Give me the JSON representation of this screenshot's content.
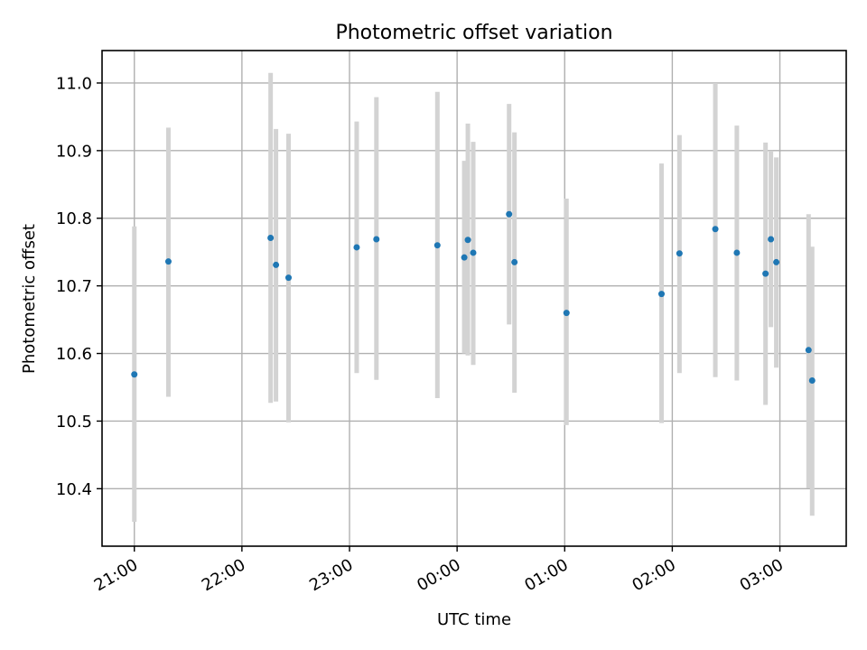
{
  "chart_data": {
    "type": "scatter",
    "title": "Photometric offset variation",
    "xlabel": "UTC time",
    "ylabel": "Photometric offset",
    "x_axis": {
      "kind": "time",
      "range": [
        "20:42",
        "03:37"
      ],
      "ticks": [
        "21:00",
        "22:00",
        "23:00",
        "00:00",
        "01:00",
        "02:00",
        "03:00"
      ]
    },
    "ylim": [
      10.315,
      11.048
    ],
    "y_ticks": [
      "10.4",
      "10.5",
      "10.6",
      "10.7",
      "10.8",
      "10.9",
      "11.0"
    ],
    "grid": true,
    "point_color": "#1f77b4",
    "errorbar_color": "#d3d3d3",
    "series": [
      {
        "points": [
          {
            "x": "21:00",
            "y": 10.569,
            "ylow": 10.351,
            "yhigh": 10.788
          },
          {
            "x": "21:19",
            "y": 10.736,
            "ylow": 10.536,
            "yhigh": 10.934
          },
          {
            "x": "22:16",
            "y": 10.771,
            "ylow": 10.527,
            "yhigh": 11.015
          },
          {
            "x": "22:19",
            "y": 10.731,
            "ylow": 10.529,
            "yhigh": 10.932
          },
          {
            "x": "22:26",
            "y": 10.712,
            "ylow": 10.498,
            "yhigh": 10.925
          },
          {
            "x": "23:04",
            "y": 10.757,
            "ylow": 10.571,
            "yhigh": 10.943
          },
          {
            "x": "23:15",
            "y": 10.769,
            "ylow": 10.561,
            "yhigh": 10.979
          },
          {
            "x": "23:49",
            "y": 10.76,
            "ylow": 10.534,
            "yhigh": 10.987
          },
          {
            "x": "00:04",
            "y": 10.742,
            "ylow": 10.6,
            "yhigh": 10.885
          },
          {
            "x": "00:06",
            "y": 10.768,
            "ylow": 10.597,
            "yhigh": 10.94
          },
          {
            "x": "00:09",
            "y": 10.749,
            "ylow": 10.583,
            "yhigh": 10.913
          },
          {
            "x": "00:29",
            "y": 10.806,
            "ylow": 10.643,
            "yhigh": 10.969
          },
          {
            "x": "00:32",
            "y": 10.735,
            "ylow": 10.542,
            "yhigh": 10.927
          },
          {
            "x": "01:01",
            "y": 10.66,
            "ylow": 10.494,
            "yhigh": 10.829
          },
          {
            "x": "01:54",
            "y": 10.688,
            "ylow": 10.497,
            "yhigh": 10.881
          },
          {
            "x": "02:04",
            "y": 10.748,
            "ylow": 10.571,
            "yhigh": 10.923
          },
          {
            "x": "02:24",
            "y": 10.784,
            "ylow": 10.565,
            "yhigh": 11.0
          },
          {
            "x": "02:36",
            "y": 10.749,
            "ylow": 10.56,
            "yhigh": 10.937
          },
          {
            "x": "02:52",
            "y": 10.718,
            "ylow": 10.524,
            "yhigh": 10.912
          },
          {
            "x": "02:55",
            "y": 10.769,
            "ylow": 10.639,
            "yhigh": 10.9
          },
          {
            "x": "02:58",
            "y": 10.735,
            "ylow": 10.579,
            "yhigh": 10.89
          },
          {
            "x": "03:16",
            "y": 10.605,
            "ylow": 10.401,
            "yhigh": 10.806
          },
          {
            "x": "03:18",
            "y": 10.56,
            "ylow": 10.36,
            "yhigh": 10.758
          }
        ]
      }
    ]
  }
}
